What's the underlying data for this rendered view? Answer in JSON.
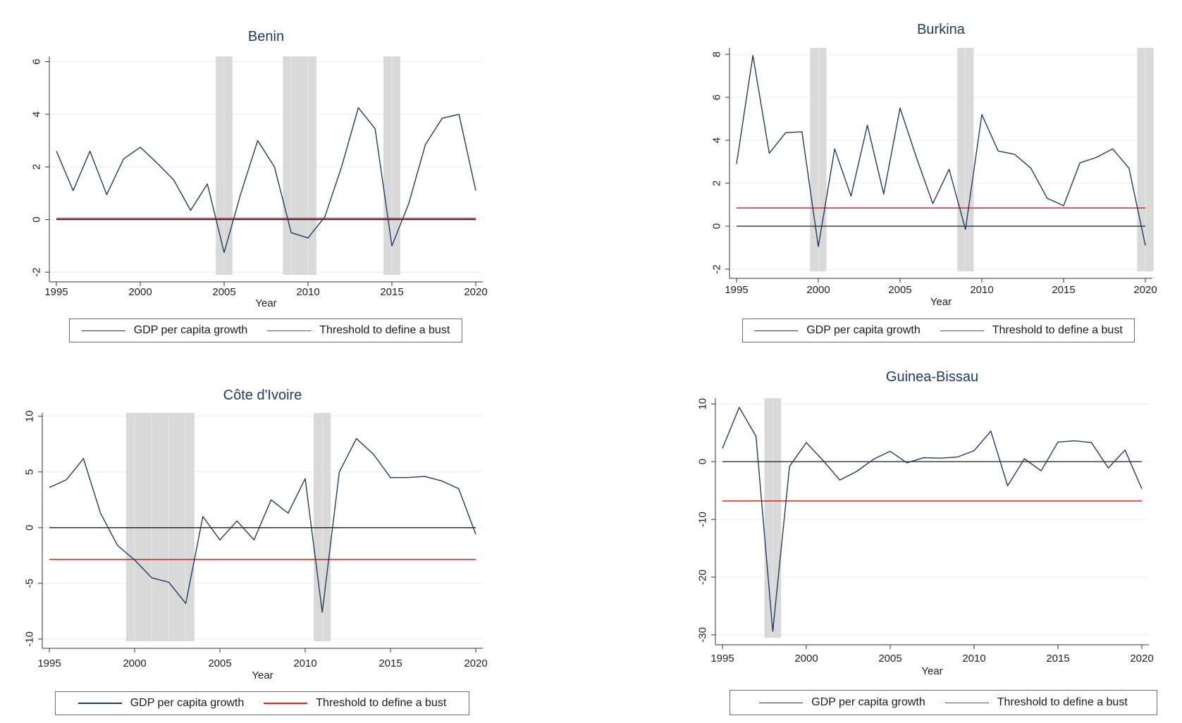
{
  "legend": {
    "growth_label": "GDP per capita growth",
    "threshold_label": "Threshold to define a bust"
  },
  "colors": {
    "growth": "#1f3c63",
    "threshold": "#e0201b",
    "zero": "#1a1a1a",
    "band": "#d9d9d9",
    "grid": "#ececec"
  },
  "chart_data": [
    {
      "type": "line",
      "title": "Benin",
      "xlabel": "Year",
      "ylabel": "",
      "xlim": [
        1995,
        2020
      ],
      "ylim": [
        -2.1,
        6.2
      ],
      "xticks": [
        1995,
        2000,
        2005,
        2010,
        2015,
        2020
      ],
      "yticks": [
        -2,
        0,
        2,
        4,
        6
      ],
      "grid": true,
      "legend_position": "bottom",
      "threshold": 0.05,
      "bust_periods": [
        [
          2004.5,
          2005.5
        ],
        [
          2008.5,
          2010.5
        ],
        [
          2014.5,
          2015.5
        ]
      ],
      "series": [
        {
          "name": "GDP per capita growth",
          "x": [
            1995,
            1996,
            1997,
            1998,
            1999,
            2000,
            2001,
            2002,
            2003,
            2004,
            2005,
            2006,
            2007,
            2008,
            2009,
            2010,
            2011,
            2012,
            2013,
            2014,
            2015,
            2016,
            2017,
            2018,
            2019,
            2020
          ],
          "y": [
            2.6,
            1.1,
            2.6,
            0.95,
            2.3,
            2.75,
            2.15,
            1.5,
            0.35,
            1.35,
            -1.25,
            1.0,
            3.0,
            2.0,
            -0.5,
            -0.7,
            0.1,
            2.0,
            4.25,
            3.45,
            -1.0,
            0.6,
            2.85,
            3.85,
            4.0,
            1.1
          ]
        }
      ]
    },
    {
      "type": "line",
      "title": "Burkina",
      "xlabel": "Year",
      "ylabel": "",
      "xlim": [
        1995,
        2020
      ],
      "ylim": [
        -2.1,
        8.3
      ],
      "xticks": [
        1995,
        2000,
        2005,
        2010,
        2015,
        2020
      ],
      "yticks": [
        -2,
        0,
        2,
        4,
        6,
        8
      ],
      "grid": true,
      "legend_position": "bottom",
      "threshold": 0.85,
      "bust_periods": [
        [
          1999.5,
          2000.5
        ],
        [
          2008.5,
          2009.5
        ],
        [
          2019.5,
          2020.5
        ]
      ],
      "series": [
        {
          "name": "GDP per capita growth",
          "x": [
            1995,
            1996,
            1997,
            1998,
            1999,
            2000,
            2001,
            2002,
            2003,
            2004,
            2005,
            2006,
            2007,
            2008,
            2009,
            2010,
            2011,
            2012,
            2013,
            2014,
            2015,
            2016,
            2017,
            2018,
            2019,
            2020
          ],
          "y": [
            2.9,
            7.95,
            3.4,
            4.35,
            4.4,
            -0.95,
            3.6,
            1.4,
            4.7,
            1.5,
            5.5,
            3.2,
            1.05,
            2.65,
            -0.15,
            5.2,
            3.5,
            3.35,
            2.7,
            1.3,
            0.95,
            2.95,
            3.2,
            3.6,
            2.7,
            -0.9
          ]
        }
      ]
    },
    {
      "type": "line",
      "title": "Côte d'Ivoire",
      "xlabel": "Year",
      "ylabel": "",
      "xlim": [
        1995,
        2020
      ],
      "ylim": [
        -10.2,
        10.3
      ],
      "xticks": [
        1995,
        2000,
        2005,
        2010,
        2015,
        2020
      ],
      "yticks": [
        -10,
        -5,
        0,
        5,
        10
      ],
      "grid": true,
      "legend_position": "bottom",
      "threshold": -2.85,
      "bust_periods": [
        [
          1999.5,
          2003.5
        ],
        [
          2010.5,
          2011.5
        ]
      ],
      "series": [
        {
          "name": "GDP per capita growth",
          "x": [
            1995,
            1996,
            1997,
            1998,
            1999,
            2000,
            2001,
            2002,
            2003,
            2004,
            2005,
            2006,
            2007,
            2008,
            2009,
            2010,
            2011,
            2012,
            2013,
            2014,
            2015,
            2016,
            2017,
            2018,
            2019,
            2020
          ],
          "y": [
            3.6,
            4.3,
            6.2,
            1.3,
            -1.6,
            -2.9,
            -4.5,
            -4.9,
            -6.8,
            1.0,
            -1.1,
            0.6,
            -1.1,
            2.5,
            1.3,
            4.4,
            -7.6,
            5.0,
            8.0,
            6.6,
            4.5,
            4.5,
            4.6,
            4.2,
            3.5,
            -0.6
          ]
        }
      ]
    },
    {
      "type": "line",
      "title": "Guinea-Bissau",
      "xlabel": "Year",
      "ylabel": "",
      "xlim": [
        1995,
        2020
      ],
      "ylim": [
        -30.5,
        11
      ],
      "xticks": [
        1995,
        2000,
        2005,
        2010,
        2015,
        2020
      ],
      "yticks": [
        -30,
        -20,
        -10,
        0,
        10
      ],
      "grid": true,
      "legend_position": "bottom",
      "threshold": -6.8,
      "bust_periods": [
        [
          1997.5,
          1998.5
        ]
      ],
      "series": [
        {
          "name": "GDP per capita growth",
          "x": [
            1995,
            1996,
            1997,
            1998,
            1999,
            2000,
            2001,
            2002,
            2003,
            2004,
            2005,
            2006,
            2007,
            2008,
            2009,
            2010,
            2011,
            2012,
            2013,
            2014,
            2015,
            2016,
            2017,
            2018,
            2019,
            2020
          ],
          "y": [
            2.3,
            9.4,
            4.4,
            -29.4,
            -0.8,
            3.3,
            0.2,
            -3.2,
            -1.7,
            0.4,
            1.8,
            -0.2,
            0.7,
            0.6,
            0.8,
            1.9,
            5.3,
            -4.2,
            0.5,
            -1.6,
            3.4,
            3.6,
            3.3,
            -1.1,
            2.0,
            -4.7
          ]
        }
      ]
    }
  ]
}
